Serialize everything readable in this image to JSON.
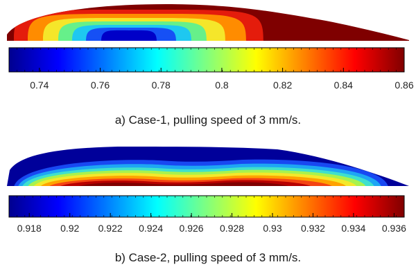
{
  "panels": [
    {
      "id": "a",
      "caption": "a) Case-1, pulling speed of 3 mm/s.",
      "colorbar": {
        "ticks": [
          "0.74",
          "0.76",
          "0.78",
          "0.8",
          "0.82",
          "0.84",
          "0.86"
        ],
        "min": 0.73,
        "max": 0.86
      },
      "contour_colors": [
        "#7f0000",
        "#e41c0c",
        "#ff8c00",
        "#f5e62a",
        "#66f08a",
        "#1ec8f0",
        "#1650f5",
        "#0000c8"
      ]
    },
    {
      "id": "b",
      "caption": "b) Case-2, pulling speed of 3 mm/s.",
      "colorbar": {
        "ticks": [
          "0.918",
          "0.92",
          "0.922",
          "0.924",
          "0.926",
          "0.928",
          "0.93",
          "0.932",
          "0.934",
          "0.936"
        ],
        "min": 0.917,
        "max": 0.9365
      },
      "contour_colors": [
        "#00009a",
        "#1848f2",
        "#1ea6f4",
        "#3fe0cc",
        "#a8f24e",
        "#f4e82a",
        "#ffa200",
        "#f44412",
        "#b80000",
        "#800000"
      ]
    }
  ],
  "colormap": "jet"
}
